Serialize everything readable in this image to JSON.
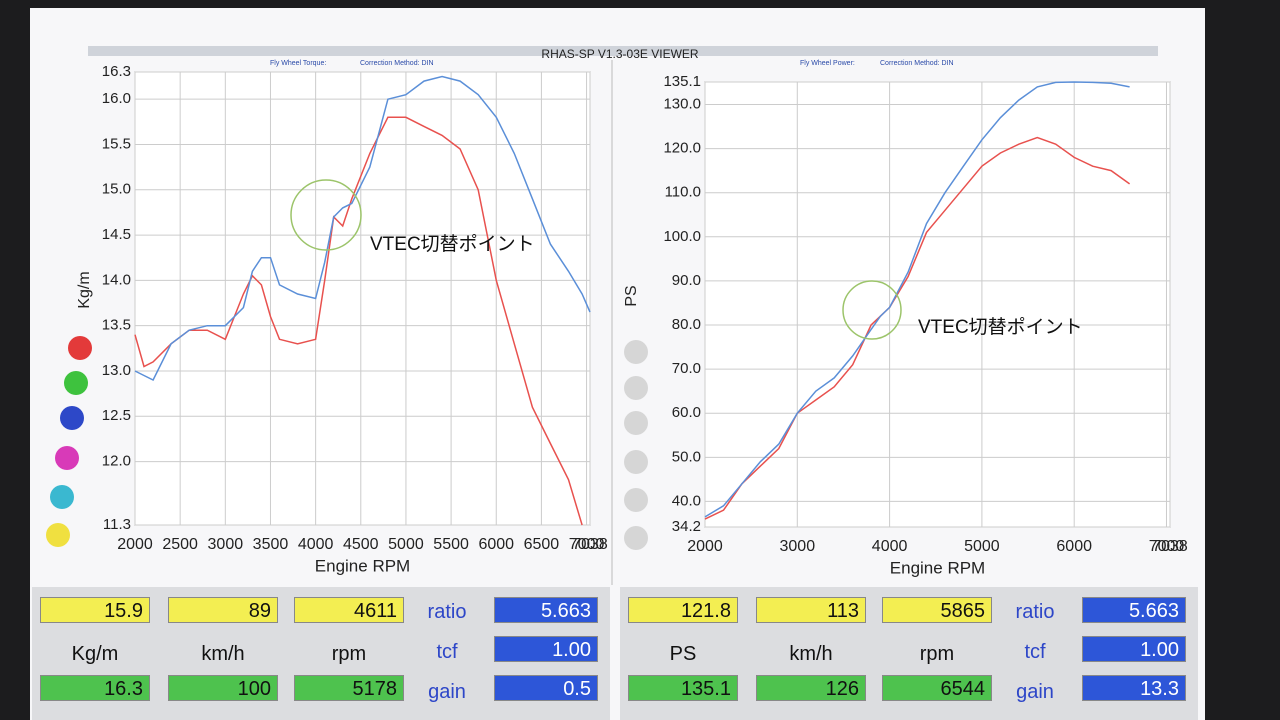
{
  "header": {
    "title": "RHAS-SP V1.3-03E VIEWER"
  },
  "chart_data": [
    {
      "type": "line",
      "subtitle": "Fly Wheel Torque:",
      "correction": "Correction Method: DIN",
      "xlabel": "Engine RPM",
      "ylabel": "Kg/m",
      "annotation": "VTEC切替ポイント",
      "grid": true,
      "x": [
        2000,
        2100,
        2200,
        2400,
        2600,
        2800,
        3000,
        3200,
        3300,
        3400,
        3500,
        3600,
        3800,
        4000,
        4100,
        4200,
        4300,
        4400,
        4600,
        4800,
        5000,
        5200,
        5400,
        5600,
        5800,
        6000,
        6200,
        6400,
        6600,
        6800,
        6950,
        7038
      ],
      "series": [
        {
          "color": "#e8514e",
          "values": [
            13.4,
            13.05,
            13.1,
            13.3,
            13.45,
            13.45,
            13.35,
            13.85,
            14.05,
            13.95,
            13.6,
            13.35,
            13.3,
            13.35,
            14.0,
            14.7,
            14.6,
            14.9,
            15.4,
            15.8,
            15.8,
            15.7,
            15.6,
            15.45,
            15.0,
            14.0,
            13.3,
            12.6,
            12.2,
            11.8,
            11.3,
            null
          ]
        },
        {
          "color": "#5b8fd8",
          "values": [
            13.0,
            12.95,
            12.9,
            13.3,
            13.45,
            13.5,
            13.5,
            13.7,
            14.1,
            14.25,
            14.25,
            13.95,
            13.85,
            13.8,
            14.2,
            14.7,
            14.8,
            14.85,
            15.25,
            16.0,
            16.05,
            16.2,
            16.25,
            16.2,
            16.05,
            15.8,
            15.4,
            14.9,
            14.4,
            14.1,
            13.85,
            13.65
          ]
        }
      ],
      "xlim": [
        2000,
        7038
      ],
      "xticks": [
        2000,
        2500,
        3000,
        3500,
        4000,
        4500,
        5000,
        5500,
        6000,
        6500,
        7000,
        7038
      ],
      "ylim": [
        11.3,
        16.3
      ],
      "yticks": [
        11.3,
        {
          "value": 12,
          "label": "12.0"
        },
        12.5,
        {
          "value": 13,
          "label": "13.0"
        },
        13.5,
        {
          "value": 14,
          "label": "14.0"
        },
        14.5,
        {
          "value": 15,
          "label": "15.0"
        },
        15.5,
        {
          "value": 16,
          "label": "16.0"
        },
        16.3
      ]
    },
    {
      "type": "line",
      "subtitle": "Fly Wheel Power:",
      "correction": "Correction Method: DIN",
      "xlabel": "Engine RPM",
      "ylabel": "PS",
      "annotation": "VTEC切替ポイント",
      "grid": true,
      "x": [
        2000,
        2200,
        2400,
        2600,
        2800,
        3000,
        3200,
        3400,
        3600,
        3800,
        3900,
        4000,
        4200,
        4400,
        4600,
        4800,
        5000,
        5200,
        5400,
        5600,
        5800,
        6000,
        6200,
        6400,
        6600
      ],
      "series": [
        {
          "color": "#e8514e",
          "values": [
            36,
            38,
            44,
            48,
            52,
            60,
            63,
            66,
            71,
            80,
            82,
            84,
            91,
            101,
            106,
            111,
            116,
            119,
            121,
            122.5,
            121,
            118,
            116,
            115,
            112
          ]
        },
        {
          "color": "#5b8fd8",
          "values": [
            36.5,
            39,
            44,
            49,
            53,
            60,
            65,
            68,
            73,
            79,
            82,
            84,
            92,
            103,
            110,
            116,
            122,
            127,
            131,
            134,
            135,
            135.1,
            135,
            134.8,
            134
          ]
        }
      ],
      "xlim": [
        2000,
        7038
      ],
      "xticks": [
        2000,
        3000,
        4000,
        5000,
        6000,
        7000,
        7038
      ],
      "ylim": [
        34.2,
        135.1
      ],
      "yticks": [
        34.2,
        {
          "value": 40,
          "label": "40.0"
        },
        {
          "value": 50,
          "label": "50.0"
        },
        {
          "value": 60,
          "label": "60.0"
        },
        {
          "value": 70,
          "label": "70.0"
        },
        {
          "value": 80,
          "label": "80.0"
        },
        {
          "value": 90,
          "label": "90.0"
        },
        {
          "value": 100,
          "label": "100.0"
        },
        {
          "value": 110,
          "label": "110.0"
        },
        {
          "value": 120,
          "label": "120.0"
        },
        {
          "value": 130,
          "label": "130.0"
        },
        135.1
      ]
    }
  ],
  "readouts": [
    {
      "current": [
        "15.9",
        "89",
        "4611"
      ],
      "units": [
        "Kg/m",
        "km/h",
        "rpm"
      ],
      "peak": [
        "16.3",
        "100",
        "5178"
      ],
      "params": [
        {
          "label": "ratio",
          "value": "5.663"
        },
        {
          "label": "tcf",
          "value": "1.00"
        },
        {
          "label": "gain",
          "value": "0.5"
        }
      ]
    },
    {
      "current": [
        "121.8",
        "113",
        "5865"
      ],
      "units": [
        "PS",
        "km/h",
        "rpm"
      ],
      "peak": [
        "135.1",
        "126",
        "6544"
      ],
      "params": [
        {
          "label": "ratio",
          "value": "5.663"
        },
        {
          "label": "tcf",
          "value": "1.00"
        },
        {
          "label": "gain",
          "value": "13.3"
        }
      ]
    }
  ]
}
